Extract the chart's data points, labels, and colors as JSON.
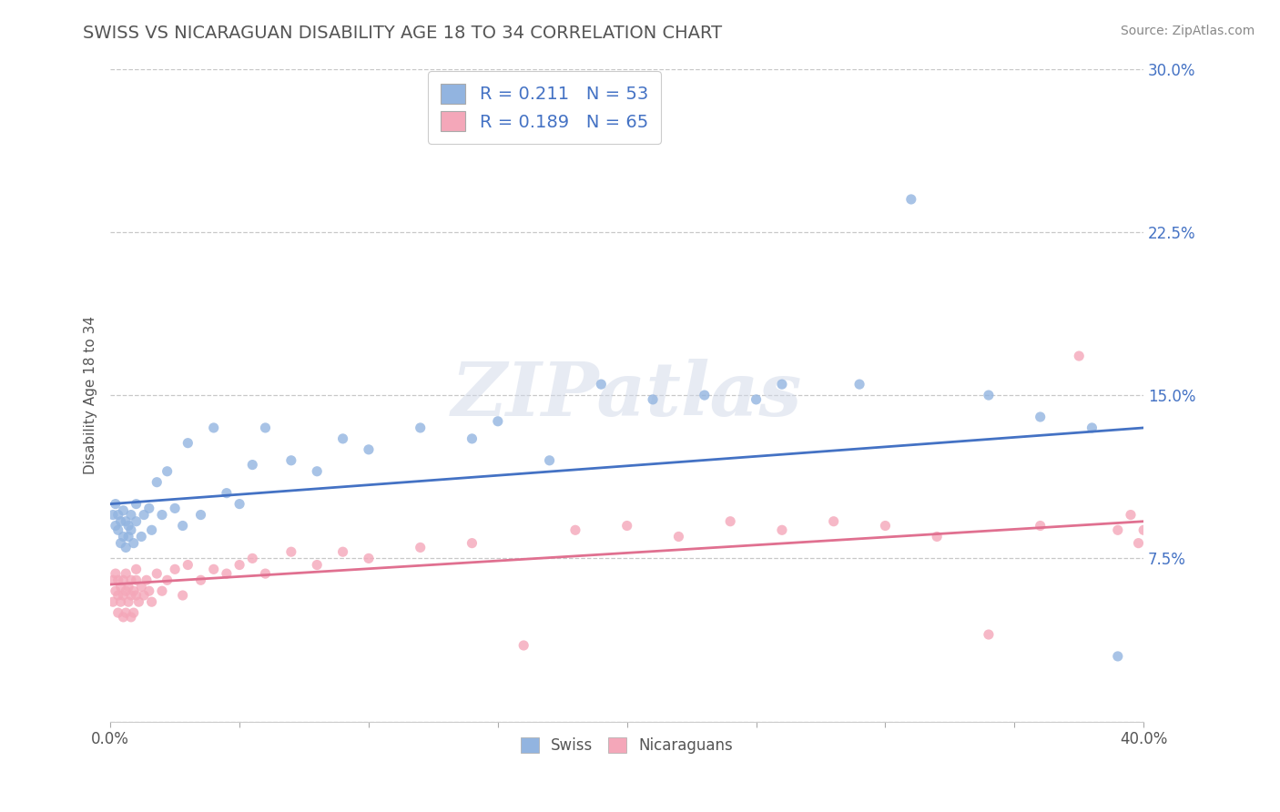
{
  "title": "SWISS VS NICARAGUAN DISABILITY AGE 18 TO 34 CORRELATION CHART",
  "source": "Source: ZipAtlas.com",
  "ylabel": "Disability Age 18 to 34",
  "xlim": [
    0.0,
    0.4
  ],
  "ylim": [
    0.0,
    0.3
  ],
  "xticks": [
    0.0,
    0.05,
    0.1,
    0.15,
    0.2,
    0.25,
    0.3,
    0.35,
    0.4
  ],
  "xticklabels_show": [
    "0.0%",
    "",
    "",
    "",
    "",
    "",
    "",
    "",
    "40.0%"
  ],
  "yticks": [
    0.0,
    0.075,
    0.15,
    0.225,
    0.3
  ],
  "yticklabels": [
    "",
    "7.5%",
    "15.0%",
    "22.5%",
    "30.0%"
  ],
  "swiss_R": 0.211,
  "swiss_N": 53,
  "nica_R": 0.189,
  "nica_N": 65,
  "swiss_color": "#92b4e0",
  "nica_color": "#f4a7b9",
  "swiss_line_color": "#4472c4",
  "nica_line_color": "#e07090",
  "legend_R_color": "#4472c4",
  "watermark": "ZIPatlas",
  "background_color": "#ffffff",
  "grid_color": "#c8c8c8",
  "title_color": "#555555",
  "swiss_line_start": 0.1,
  "swiss_line_end": 0.135,
  "nica_line_start": 0.063,
  "nica_line_end": 0.092,
  "swiss_x": [
    0.001,
    0.002,
    0.002,
    0.003,
    0.003,
    0.004,
    0.004,
    0.005,
    0.005,
    0.006,
    0.006,
    0.007,
    0.007,
    0.008,
    0.008,
    0.009,
    0.01,
    0.01,
    0.012,
    0.013,
    0.015,
    0.016,
    0.018,
    0.02,
    0.022,
    0.025,
    0.028,
    0.03,
    0.035,
    0.04,
    0.045,
    0.05,
    0.055,
    0.06,
    0.07,
    0.08,
    0.09,
    0.1,
    0.12,
    0.14,
    0.15,
    0.17,
    0.19,
    0.21,
    0.23,
    0.25,
    0.26,
    0.29,
    0.31,
    0.34,
    0.36,
    0.38,
    0.39
  ],
  "swiss_y": [
    0.095,
    0.09,
    0.1,
    0.088,
    0.095,
    0.082,
    0.092,
    0.085,
    0.097,
    0.08,
    0.092,
    0.09,
    0.085,
    0.088,
    0.095,
    0.082,
    0.092,
    0.1,
    0.085,
    0.095,
    0.098,
    0.088,
    0.11,
    0.095,
    0.115,
    0.098,
    0.09,
    0.128,
    0.095,
    0.135,
    0.105,
    0.1,
    0.118,
    0.135,
    0.12,
    0.115,
    0.13,
    0.125,
    0.135,
    0.13,
    0.138,
    0.12,
    0.155,
    0.148,
    0.15,
    0.148,
    0.155,
    0.155,
    0.24,
    0.15,
    0.14,
    0.135,
    0.03
  ],
  "nica_x": [
    0.001,
    0.001,
    0.002,
    0.002,
    0.003,
    0.003,
    0.003,
    0.004,
    0.004,
    0.005,
    0.005,
    0.005,
    0.006,
    0.006,
    0.006,
    0.007,
    0.007,
    0.008,
    0.008,
    0.008,
    0.009,
    0.009,
    0.01,
    0.01,
    0.01,
    0.011,
    0.012,
    0.013,
    0.014,
    0.015,
    0.016,
    0.018,
    0.02,
    0.022,
    0.025,
    0.028,
    0.03,
    0.035,
    0.04,
    0.045,
    0.05,
    0.055,
    0.06,
    0.07,
    0.08,
    0.09,
    0.1,
    0.12,
    0.14,
    0.16,
    0.18,
    0.2,
    0.22,
    0.24,
    0.26,
    0.28,
    0.3,
    0.32,
    0.34,
    0.36,
    0.375,
    0.39,
    0.395,
    0.398,
    0.4
  ],
  "nica_y": [
    0.065,
    0.055,
    0.06,
    0.068,
    0.05,
    0.058,
    0.065,
    0.055,
    0.062,
    0.048,
    0.058,
    0.065,
    0.05,
    0.06,
    0.068,
    0.055,
    0.062,
    0.048,
    0.058,
    0.065,
    0.05,
    0.06,
    0.058,
    0.065,
    0.07,
    0.055,
    0.062,
    0.058,
    0.065,
    0.06,
    0.055,
    0.068,
    0.06,
    0.065,
    0.07,
    0.058,
    0.072,
    0.065,
    0.07,
    0.068,
    0.072,
    0.075,
    0.068,
    0.078,
    0.072,
    0.078,
    0.075,
    0.08,
    0.082,
    0.035,
    0.088,
    0.09,
    0.085,
    0.092,
    0.088,
    0.092,
    0.09,
    0.085,
    0.04,
    0.09,
    0.168,
    0.088,
    0.095,
    0.082,
    0.088
  ]
}
